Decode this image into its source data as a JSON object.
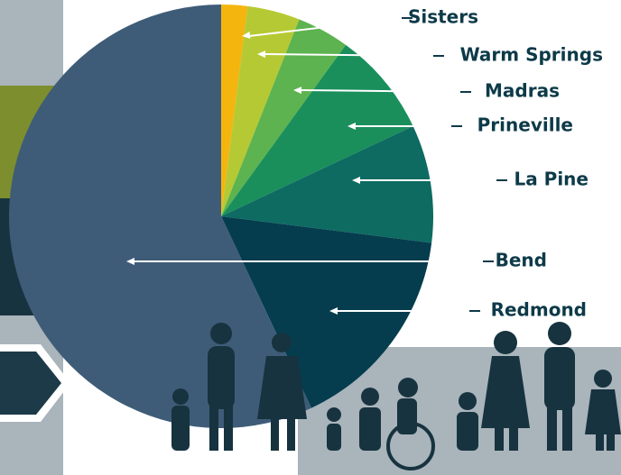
{
  "chart_data": {
    "type": "pie",
    "categories": [
      "Sisters",
      "Warm Springs",
      "Madras",
      "Prineville",
      "La Pine",
      "Redmond",
      "Bend"
    ],
    "values": [
      2,
      4,
      4,
      8,
      9,
      16,
      57
    ],
    "colors": [
      "#f5b50f",
      "#b5c934",
      "#5db34f",
      "#1a8f5c",
      "#0d6b62",
      "#053d4e",
      "#3e5c78"
    ]
  }
}
